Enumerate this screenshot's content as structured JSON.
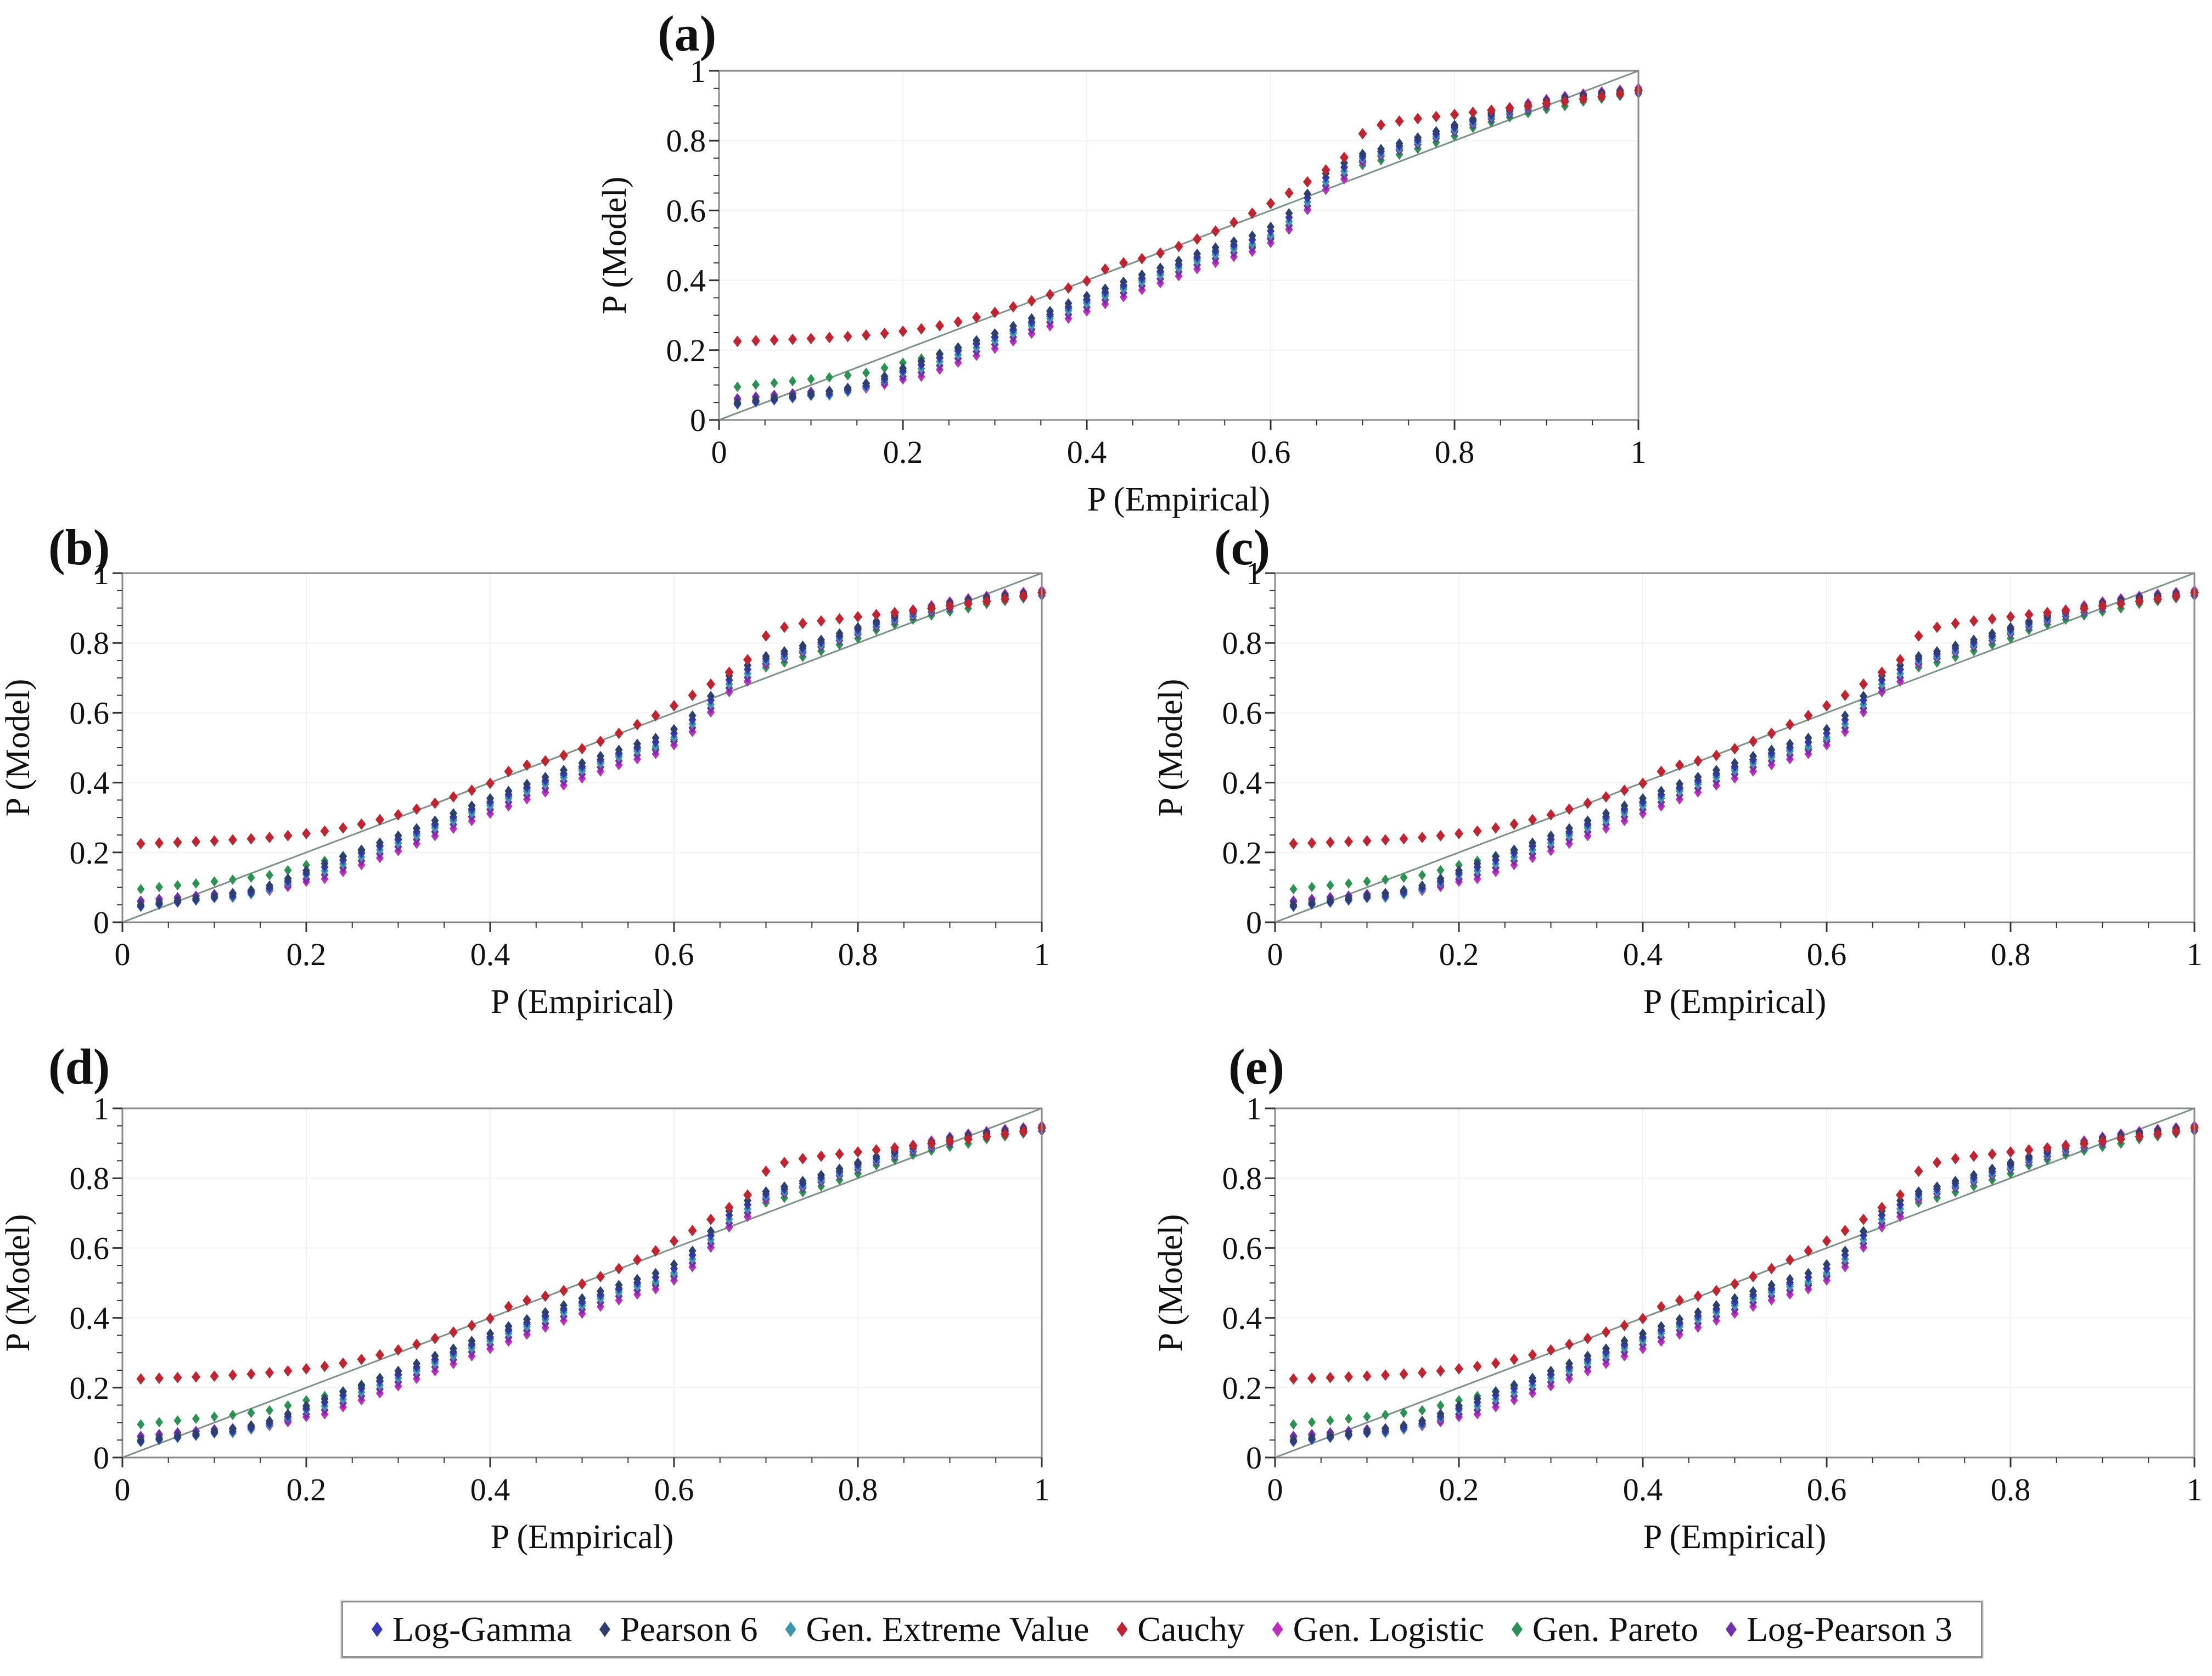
{
  "chart_data": {
    "type": "scatter",
    "series_shared_across_panels": true,
    "panels": [
      {
        "id": "a",
        "label": "(a)"
      },
      {
        "id": "b",
        "label": "(b)"
      },
      {
        "id": "c",
        "label": "(c)"
      },
      {
        "id": "d",
        "label": "(d)"
      },
      {
        "id": "e",
        "label": "(e)"
      }
    ],
    "x_axis": {
      "title": "P (Empirical)",
      "lim": [
        0,
        1
      ],
      "tick_values": [
        0,
        0.2,
        0.4,
        0.6,
        0.8,
        1
      ],
      "tick_labels": [
        "0",
        "0.2",
        "0.4",
        "0.6",
        "0.8",
        "1"
      ],
      "minor_tick_step": 0.05
    },
    "y_axis": {
      "title": "P (Model)",
      "lim": [
        0,
        1
      ],
      "tick_values": [
        0,
        0.2,
        0.4,
        0.6,
        0.8,
        1
      ],
      "tick_labels": [
        "0",
        "0.2",
        "0.4",
        "0.6",
        "0.8",
        "1"
      ],
      "minor_tick_step": 0.05
    },
    "grid": {
      "show": true,
      "step": 0.2,
      "color": "#f2f2f2"
    },
    "reference_line": {
      "from": [
        0,
        0
      ],
      "to": [
        1,
        1
      ],
      "color": "#7f9188"
    },
    "x": [
      0.02,
      0.04,
      0.06,
      0.08,
      0.1,
      0.12,
      0.14,
      0.16,
      0.18,
      0.2,
      0.22,
      0.24,
      0.26,
      0.28,
      0.3,
      0.32,
      0.34,
      0.36,
      0.38,
      0.4,
      0.42,
      0.44,
      0.46,
      0.48,
      0.5,
      0.52,
      0.54,
      0.56,
      0.58,
      0.6,
      0.62,
      0.64,
      0.66,
      0.68,
      0.7,
      0.72,
      0.74,
      0.76,
      0.78,
      0.8,
      0.82,
      0.84,
      0.86,
      0.88,
      0.9,
      0.92,
      0.94,
      0.96,
      0.98,
      1.0
    ],
    "series": [
      {
        "name": "log_gamma",
        "label": "Log-Gamma",
        "color": "#3537bb",
        "values": [
          0.046,
          0.052,
          0.058,
          0.064,
          0.071,
          0.075,
          0.085,
          0.098,
          0.118,
          0.141,
          0.158,
          0.178,
          0.198,
          0.218,
          0.238,
          0.259,
          0.281,
          0.302,
          0.324,
          0.345,
          0.366,
          0.386,
          0.406,
          0.426,
          0.446,
          0.466,
          0.484,
          0.501,
          0.516,
          0.541,
          0.58,
          0.636,
          0.694,
          0.724,
          0.755,
          0.769,
          0.785,
          0.802,
          0.82,
          0.838,
          0.857,
          0.873,
          0.887,
          0.899,
          0.91,
          0.919,
          0.928,
          0.934,
          0.939,
          0.944
        ]
      },
      {
        "name": "pearson6",
        "label": "Pearson 6",
        "color": "#2d3f6c",
        "values": [
          0.05,
          0.056,
          0.062,
          0.068,
          0.075,
          0.082,
          0.092,
          0.105,
          0.125,
          0.148,
          0.168,
          0.188,
          0.208,
          0.228,
          0.248,
          0.269,
          0.291,
          0.312,
          0.334,
          0.355,
          0.376,
          0.396,
          0.416,
          0.436,
          0.456,
          0.476,
          0.494,
          0.511,
          0.528,
          0.553,
          0.592,
          0.648,
          0.706,
          0.736,
          0.762,
          0.776,
          0.792,
          0.809,
          0.827,
          0.845,
          0.862,
          0.878,
          0.892,
          0.904,
          0.915,
          0.924,
          0.931,
          0.937,
          0.942,
          0.947
        ]
      },
      {
        "name": "gen_extreme_value",
        "label": "Gen. Extreme Value",
        "color": "#3e93ad",
        "values": [
          0.044,
          0.05,
          0.056,
          0.062,
          0.069,
          0.07,
          0.08,
          0.093,
          0.113,
          0.136,
          0.147,
          0.167,
          0.187,
          0.207,
          0.227,
          0.248,
          0.27,
          0.291,
          0.313,
          0.334,
          0.355,
          0.375,
          0.395,
          0.415,
          0.435,
          0.455,
          0.473,
          0.49,
          0.504,
          0.529,
          0.568,
          0.624,
          0.682,
          0.712,
          0.748,
          0.762,
          0.778,
          0.795,
          0.813,
          0.831,
          0.852,
          0.868,
          0.882,
          0.894,
          0.905,
          0.914,
          0.925,
          0.931,
          0.936,
          0.941
        ]
      },
      {
        "name": "cauchy",
        "label": "Cauchy",
        "color": "#bf2431",
        "values": [
          0.225,
          0.227,
          0.229,
          0.231,
          0.233,
          0.236,
          0.239,
          0.243,
          0.248,
          0.254,
          0.261,
          0.27,
          0.281,
          0.294,
          0.308,
          0.324,
          0.341,
          0.359,
          0.378,
          0.398,
          0.432,
          0.45,
          0.462,
          0.478,
          0.497,
          0.518,
          0.541,
          0.566,
          0.592,
          0.62,
          0.65,
          0.682,
          0.716,
          0.752,
          0.82,
          0.845,
          0.856,
          0.863,
          0.869,
          0.875,
          0.881,
          0.887,
          0.893,
          0.899,
          0.906,
          0.912,
          0.919,
          0.926,
          0.934,
          0.944
        ]
      },
      {
        "name": "gen_logistic",
        "label": "Gen. Logistic",
        "color": "#bc2ec0",
        "values": [
          0.058,
          0.063,
          0.068,
          0.074,
          0.08,
          0.082,
          0.085,
          0.09,
          0.101,
          0.116,
          0.124,
          0.144,
          0.164,
          0.184,
          0.204,
          0.225,
          0.247,
          0.268,
          0.29,
          0.311,
          0.332,
          0.352,
          0.372,
          0.392,
          0.412,
          0.432,
          0.45,
          0.467,
          0.482,
          0.507,
          0.546,
          0.602,
          0.66,
          0.69,
          0.738,
          0.756,
          0.776,
          0.797,
          0.819,
          0.841,
          0.862,
          0.88,
          0.896,
          0.908,
          0.919,
          0.928,
          0.935,
          0.941,
          0.946,
          0.951
        ]
      },
      {
        "name": "gen_pareto",
        "label": "Gen. Pareto",
        "color": "#2d9153",
        "values": [
          0.095,
          0.101,
          0.106,
          0.111,
          0.117,
          0.122,
          0.128,
          0.135,
          0.149,
          0.164,
          0.176,
          0.19,
          0.204,
          0.22,
          0.236,
          0.254,
          0.276,
          0.297,
          0.319,
          0.34,
          0.361,
          0.381,
          0.401,
          0.421,
          0.441,
          0.461,
          0.479,
          0.496,
          0.498,
          0.523,
          0.545,
          0.601,
          0.659,
          0.689,
          0.73,
          0.744,
          0.76,
          0.777,
          0.795,
          0.813,
          0.837,
          0.853,
          0.867,
          0.879,
          0.89,
          0.899,
          0.912,
          0.92,
          0.928,
          0.935
        ]
      },
      {
        "name": "log_pearson3",
        "label": "Log-Pearson 3",
        "color": "#7030a8",
        "values": [
          0.062,
          0.067,
          0.072,
          0.076,
          0.081,
          0.084,
          0.088,
          0.095,
          0.107,
          0.124,
          0.136,
          0.156,
          0.176,
          0.196,
          0.216,
          0.237,
          0.259,
          0.28,
          0.302,
          0.323,
          0.344,
          0.364,
          0.384,
          0.404,
          0.424,
          0.444,
          0.462,
          0.479,
          0.493,
          0.518,
          0.557,
          0.613,
          0.671,
          0.701,
          0.742,
          0.756,
          0.772,
          0.789,
          0.807,
          0.825,
          0.846,
          0.862,
          0.876,
          0.888,
          0.899,
          0.912,
          0.919,
          0.925,
          0.931,
          0.936
        ]
      }
    ]
  },
  "legend": {
    "items": [
      {
        "label": "Log-Gamma"
      },
      {
        "label": "Pearson 6"
      },
      {
        "label": "Gen. Extreme Value"
      },
      {
        "label": "Cauchy"
      },
      {
        "label": "Gen. Logistic"
      },
      {
        "label": "Gen. Pareto"
      },
      {
        "label": "Log-Pearson 3"
      }
    ]
  }
}
